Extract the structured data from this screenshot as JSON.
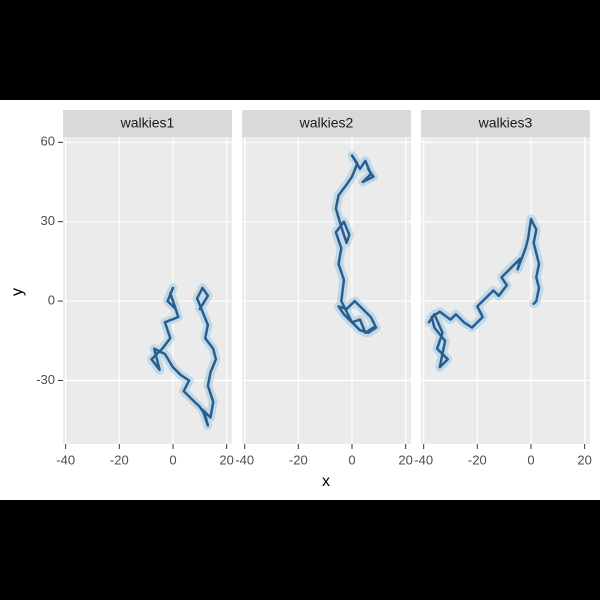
{
  "chart_data": {
    "type": "line",
    "x_label": "x",
    "y_label": "y",
    "xlim": [
      -41,
      22
    ],
    "ylim": [
      -54,
      62
    ],
    "xticks": [
      -40,
      -20,
      0,
      20
    ],
    "yticks": [
      -30,
      0,
      30,
      60
    ],
    "grid": true,
    "halo_color": "#9ecae1",
    "series": [
      {
        "name": "walkies1",
        "color": "#2a5d8f",
        "x": [
          0,
          -2,
          1,
          -1,
          2,
          -3,
          -1,
          -4,
          -6,
          -8,
          -5,
          -7,
          -3,
          0,
          3,
          6,
          4,
          8,
          10,
          12,
          13,
          11,
          14,
          15,
          13,
          14,
          16,
          15,
          12,
          13,
          11,
          9,
          11,
          13,
          10
        ],
        "values": [
          5,
          0,
          -3,
          3,
          -6,
          -8,
          -14,
          -18,
          -20,
          -22,
          -26,
          -18,
          -20,
          -25,
          -28,
          -30,
          -34,
          -38,
          -40,
          -43,
          -47,
          -41,
          -44,
          -38,
          -32,
          -27,
          -22,
          -18,
          -14,
          -9,
          -4,
          1,
          5,
          2,
          -3
        ]
      },
      {
        "name": "walkies2",
        "color": "#2a5d8f",
        "x": [
          8,
          5,
          3,
          0,
          -3,
          -5,
          -2,
          1,
          4,
          7,
          9,
          6,
          3,
          0,
          -2,
          -4,
          -3,
          -5,
          -4,
          -6,
          -3,
          -1,
          -2,
          -4,
          -6,
          -5,
          -2,
          0,
          2,
          0,
          3,
          5,
          7,
          4,
          8,
          6
        ],
        "values": [
          -10,
          -12,
          -7,
          -8,
          -5,
          -2,
          -3,
          0,
          -3,
          -6,
          -10,
          -12,
          -11,
          -8,
          -4,
          0,
          8,
          14,
          20,
          26,
          30,
          25,
          22,
          28,
          35,
          40,
          44,
          47,
          52,
          55,
          50,
          53,
          48,
          45,
          47,
          50
        ]
      },
      {
        "name": "walkies3",
        "color": "#2a5d8f",
        "x": [
          -38,
          -36,
          -33,
          -35,
          -31,
          -34,
          -32,
          -36,
          -37,
          -34,
          -30,
          -28,
          -25,
          -22,
          -18,
          -20,
          -17,
          -14,
          -12,
          -9,
          -11,
          -7,
          -4,
          -5,
          -2,
          -1,
          0,
          2,
          1,
          3,
          2,
          3,
          2,
          1
        ],
        "values": [
          -8,
          -5,
          -12,
          -18,
          -22,
          -25,
          -15,
          -10,
          -6,
          -4,
          -7,
          -5,
          -8,
          -10,
          -6,
          -2,
          1,
          4,
          2,
          6,
          9,
          13,
          16,
          12,
          20,
          24,
          31,
          27,
          22,
          14,
          9,
          5,
          0,
          -1
        ]
      }
    ]
  }
}
